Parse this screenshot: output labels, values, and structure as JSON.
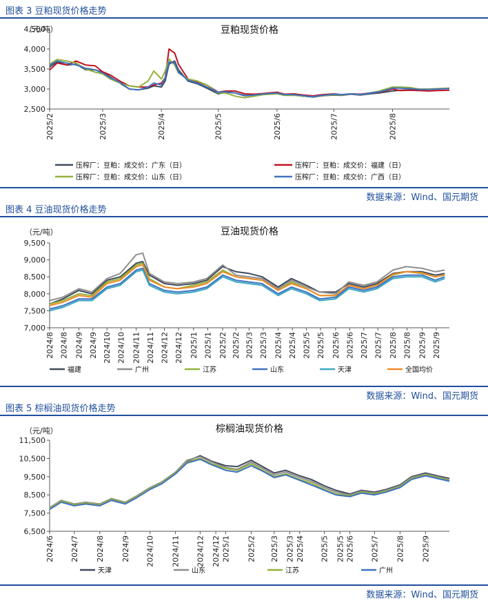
{
  "sections": [
    {
      "heading": "图表 3 豆粕现货价格走势",
      "source": "数据来源：Wind、国元期货",
      "chart_data": {
        "type": "line",
        "title": "豆粕现货价格",
        "unit": "（元/吨）",
        "ylim": [
          2500,
          4500
        ],
        "yticks": [
          2500,
          3000,
          3500,
          4000,
          4500
        ],
        "ytick_labels": [
          "2,500",
          "3,000",
          "3,500",
          "4,000",
          "4,500"
        ],
        "x_dates": [
          "2025-02-01",
          "2025-02-05",
          "2025-02-10",
          "2025-02-15",
          "2025-02-20",
          "2025-02-25",
          "2025-03-01",
          "2025-03-05",
          "2025-03-10",
          "2025-03-15",
          "2025-03-20",
          "2025-03-25",
          "2025-03-28",
          "2025-04-01",
          "2025-04-03",
          "2025-04-05",
          "2025-04-08",
          "2025-04-10",
          "2025-04-15",
          "2025-04-20",
          "2025-04-25",
          "2025-05-01",
          "2025-05-05",
          "2025-05-10",
          "2025-05-15",
          "2025-05-20",
          "2025-05-25",
          "2025-06-01",
          "2025-06-05",
          "2025-06-10",
          "2025-06-15",
          "2025-06-20",
          "2025-06-25",
          "2025-07-01",
          "2025-07-05",
          "2025-07-10",
          "2025-07-15",
          "2025-07-20",
          "2025-07-25",
          "2025-08-01",
          "2025-08-05",
          "2025-08-10",
          "2025-08-15",
          "2025-08-20",
          "2025-08-25",
          "2025-08-31"
        ],
        "xtick_labels": [
          "2025/2",
          "2025/3",
          "2025/4",
          "2025/5",
          "2025/6",
          "2025/7",
          "2025/8"
        ],
        "xtick_dates": [
          "2025-02-01",
          "2025-03-01",
          "2025-04-01",
          "2025-05-01",
          "2025-06-01",
          "2025-07-01",
          "2025-08-01"
        ],
        "x_start": "2025-02-01",
        "x_end": "2025-08-31",
        "legend_columns": 2,
        "series": [
          {
            "name": "压榨厂：豆粕：成交价：广东（日）",
            "color": "#404a5c",
            "values": [
              3550,
              3680,
              3600,
              3620,
              3480,
              3480,
              3420,
              3300,
              3150,
              3000,
              2980,
              3020,
              3080,
              3050,
              3200,
              3620,
              3700,
              3480,
              3200,
              3130,
              3020,
              2880,
              2920,
              2900,
              2830,
              2850,
              2870,
              2900,
              2850,
              2860,
              2820,
              2800,
              2830,
              2850,
              2840,
              2870,
              2850,
              2880,
              2900,
              2950,
              2970,
              2980,
              2980,
              2990,
              3000,
              3020
            ]
          },
          {
            "name": "压榨厂：豆粕：成交价：福建（日）",
            "color": "#c0121e",
            "values": [
              3480,
              3650,
              3600,
              3700,
              3600,
              3580,
              3430,
              3350,
              3200,
              3080,
              3050,
              3050,
              3100,
              3150,
              3280,
              4000,
              3900,
              3620,
              3250,
              3180,
              3100,
              2920,
              2950,
              2950,
              2880,
              2870,
              2890,
              2920,
              2870,
              2880,
              2850,
              2830,
              2860,
              2880,
              2860,
              2880,
              2870,
              2900,
              2920,
              3000,
              2960,
              2970,
              2960,
              2950,
              2960,
              2970
            ]
          },
          {
            "name": "压榨厂：豆粕：成交价：山东（日）",
            "color": "#93b23b",
            "values": [
              3620,
              3740,
              3700,
              3650,
              3500,
              3420,
              3380,
              3250,
              3150,
              3080,
              3050,
              3200,
              3450,
              3250,
              3450,
              3750,
              3600,
              3400,
              3250,
              3200,
              3100,
              2900,
              2900,
              2820,
              2780,
              2820,
              2860,
              2880,
              2840,
              2840,
              2820,
              2810,
              2830,
              2860,
              2850,
              2880,
              2860,
              2900,
              2950,
              3050,
              3050,
              3040,
              3000,
              3000,
              3010,
              3020
            ]
          },
          {
            "name": "压榨厂：豆粕：成交价：广西（日）",
            "color": "#3f72c0",
            "values": [
              3600,
              3700,
              3650,
              3600,
              3520,
              3480,
              3400,
              3280,
              3170,
              3000,
              2980,
              3050,
              3150,
              3100,
              3280,
              3680,
              3650,
              3420,
              3220,
              3150,
              3050,
              2920,
              2930,
              2900,
              2840,
              2850,
              2880,
              2900,
              2860,
              2860,
              2830,
              2810,
              2840,
              2870,
              2860,
              2880,
              2860,
              2900,
              2930,
              3020,
              3020,
              3010,
              2990,
              2990,
              3000,
              3010
            ]
          }
        ]
      }
    },
    {
      "heading": "图表 4 豆油现货价格走势",
      "source": "数据来源：Wind、国元期货",
      "chart_data": {
        "type": "line",
        "title": "豆油现货价格",
        "unit": "（元/吨）",
        "ylim": [
          7000,
          9500
        ],
        "yticks": [
          7000,
          7500,
          8000,
          8500,
          9000,
          9500
        ],
        "ytick_labels": [
          "7,000",
          "7,500",
          "8,000",
          "8,500",
          "9,000",
          "9,500"
        ],
        "x_dates": [
          "2024-08-01",
          "2024-08-15",
          "2024-09-01",
          "2024-09-15",
          "2024-10-01",
          "2024-10-15",
          "2024-11-01",
          "2024-11-08",
          "2024-11-15",
          "2024-12-01",
          "2024-12-15",
          "2025-01-01",
          "2025-01-15",
          "2025-02-01",
          "2025-02-15",
          "2025-03-01",
          "2025-03-15",
          "2025-04-01",
          "2025-04-15",
          "2025-05-01",
          "2025-05-15",
          "2025-06-01",
          "2025-06-15",
          "2025-07-01",
          "2025-07-15",
          "2025-08-01",
          "2025-08-15",
          "2025-09-01",
          "2025-09-15",
          "2025-09-25"
        ],
        "xtick_labels": [
          "2024/8",
          "2024/8",
          "2024/9",
          "2024/9",
          "2024/10",
          "2024/10",
          "2024/11",
          "2024/11",
          "2024/12",
          "2024/12",
          "2025/1",
          "2025/1",
          "2025/2",
          "2025/2",
          "2025/3",
          "2025/3",
          "2025/4",
          "2025/4",
          "2025/5",
          "2025/5",
          "2025/6",
          "2025/6",
          "2025/7",
          "2025/7",
          "2025/8",
          "2025/8",
          "2025/9",
          "2025/9"
        ],
        "xtick_dates": [
          "2024-08-01",
          "2024-08-16",
          "2024-09-01",
          "2024-09-16",
          "2024-10-01",
          "2024-10-16",
          "2024-11-01",
          "2024-11-16",
          "2024-12-01",
          "2024-12-16",
          "2025-01-01",
          "2025-01-16",
          "2025-02-01",
          "2025-02-15",
          "2025-03-01",
          "2025-03-16",
          "2025-04-01",
          "2025-04-16",
          "2025-05-01",
          "2025-05-16",
          "2025-06-01",
          "2025-06-16",
          "2025-07-01",
          "2025-07-16",
          "2025-08-01",
          "2025-08-16",
          "2025-09-01",
          "2025-09-16"
        ],
        "x_start": "2024-08-01",
        "x_end": "2025-09-30",
        "legend_columns": 6,
        "series": [
          {
            "name": "福建",
            "color": "#404a5c",
            "values": [
              7700,
              7850,
              8100,
              8000,
              8400,
              8500,
              8900,
              8950,
              8550,
              8300,
              8250,
              8300,
              8400,
              8800,
              8650,
              8600,
              8500,
              8200,
              8450,
              8250,
              8050,
              8050,
              8300,
              8200,
              8300,
              8600,
              8650,
              8650,
              8550,
              8600
            ]
          },
          {
            "name": "广州",
            "color": "#8e8e8e",
            "values": [
              7800,
              7900,
              8150,
              8050,
              8450,
              8600,
              9150,
              9200,
              8600,
              8350,
              8300,
              8350,
              8450,
              8850,
              8550,
              8500,
              8450,
              8150,
              8400,
              8200,
              8050,
              8000,
              8350,
              8250,
              8350,
              8700,
              8800,
              8750,
              8650,
              8700
            ]
          },
          {
            "name": "江苏",
            "color": "#93b23b",
            "values": [
              7700,
              7800,
              8000,
              7950,
              8350,
              8450,
              8850,
              8900,
              8450,
              8200,
              8150,
              8250,
              8350,
              8700,
              8500,
              8450,
              8400,
              8100,
              8350,
              8150,
              7950,
              7950,
              8250,
              8150,
              8250,
              8550,
              8650,
              8600,
              8500,
              8550
            ]
          },
          {
            "name": "山东",
            "color": "#3f72c0",
            "values": [
              7550,
              7650,
              7850,
              7850,
              8200,
              8300,
              8700,
              8750,
              8300,
              8100,
              8050,
              8100,
              8200,
              8550,
              8400,
              8350,
              8300,
              8000,
              8200,
              8050,
              7850,
              7900,
              8200,
              8100,
              8200,
              8500,
              8550,
              8550,
              8400,
              8500
            ]
          },
          {
            "name": "天津",
            "color": "#3aa8c1",
            "values": [
              7500,
              7600,
              7800,
              7800,
              8150,
              8250,
              8650,
              8700,
              8250,
              8050,
              8000,
              8050,
              8150,
              8500,
              8350,
              8300,
              8250,
              7950,
              8150,
              8000,
              7800,
              7850,
              8150,
              8050,
              8150,
              8450,
              8500,
              8500,
              8350,
              8450
            ]
          },
          {
            "name": "全国均价",
            "color": "#f08a2a",
            "values": [
              7650,
              7750,
              7950,
              7900,
              8300,
              8400,
              8800,
              8850,
              8400,
              8200,
              8150,
              8200,
              8300,
              8650,
              8500,
              8450,
              8400,
              8100,
              8300,
              8150,
              7950,
              7950,
              8250,
              8150,
              8250,
              8580,
              8650,
              8620,
              8500,
              8560
            ]
          }
        ]
      }
    },
    {
      "heading": "图表 5 棕榈油现货价格走势",
      "source": "数据来源：Wind、国元期货",
      "chart_data": {
        "type": "line",
        "title": "棕榈油现货价格",
        "unit": "（元/吨）",
        "ylim": [
          6500,
          11500
        ],
        "yticks": [
          6500,
          7500,
          8500,
          9500,
          10500,
          11500
        ],
        "ytick_labels": [
          "6,500",
          "7,500",
          "8,500",
          "9,500",
          "10,500",
          "11,500"
        ],
        "x_dates": [
          "2024-06-01",
          "2024-06-15",
          "2024-07-01",
          "2024-07-15",
          "2024-08-01",
          "2024-08-15",
          "2024-09-01",
          "2024-09-15",
          "2024-10-01",
          "2024-10-15",
          "2024-11-01",
          "2024-11-15",
          "2024-12-01",
          "2024-12-15",
          "2025-01-01",
          "2025-01-15",
          "2025-02-01",
          "2025-02-15",
          "2025-03-01",
          "2025-03-15",
          "2025-04-01",
          "2025-04-15",
          "2025-05-01",
          "2025-05-15",
          "2025-06-01",
          "2025-06-15",
          "2025-07-01",
          "2025-07-15",
          "2025-08-01",
          "2025-08-15",
          "2025-09-01",
          "2025-09-15",
          "2025-09-30"
        ],
        "xtick_labels": [
          "2024/6",
          "2024/7",
          "2024/8",
          "2024/9",
          "2024/10",
          "2024/11",
          "2024/12",
          "2024/12",
          "2025/1",
          "2025/2",
          "2025/3",
          "2025/3",
          "2025/4",
          "2025/5",
          "2025/5",
          "2025/6",
          "2025/7",
          "2025/8",
          "2025/9"
        ],
        "xtick_dates": [
          "2024-06-01",
          "2024-07-01",
          "2024-08-01",
          "2024-09-01",
          "2024-10-01",
          "2024-11-01",
          "2024-12-01",
          "2024-12-20",
          "2025-01-01",
          "2025-02-01",
          "2025-03-01",
          "2025-03-20",
          "2025-04-01",
          "2025-05-01",
          "2025-05-20",
          "2025-06-01",
          "2025-07-01",
          "2025-08-01",
          "2025-09-01"
        ],
        "x_start": "2024-06-01",
        "x_end": "2025-09-30",
        "legend_columns": 4,
        "series": [
          {
            "name": "天津",
            "color": "#404a5c",
            "values": [
              7750,
              8150,
              7950,
              8050,
              7950,
              8250,
              8050,
              8400,
              8850,
              9150,
              9700,
              10350,
              10650,
              10350,
              10100,
              10050,
              10400,
              10050,
              9700,
              9850,
              9550,
              9350,
              9000,
              8750,
              8550,
              8750,
              8650,
              8800,
              9050,
              9500,
              9700,
              9550,
              9400
            ]
          },
          {
            "name": "山东",
            "color": "#8e8e8e",
            "values": [
              7800,
              8200,
              8000,
              8100,
              8000,
              8300,
              8100,
              8450,
              8900,
              9200,
              9750,
              10400,
              10600,
              10300,
              10000,
              9900,
              10300,
              9950,
              9600,
              9750,
              9450,
              9250,
              8900,
              8650,
              8500,
              8700,
              8600,
              8750,
              9000,
              9450,
              9650,
              9500,
              9350
            ]
          },
          {
            "name": "江苏",
            "color": "#93b23b",
            "values": [
              7750,
              8150,
              7950,
              8050,
              7950,
              8250,
              8050,
              8400,
              8850,
              9150,
              9700,
              10300,
              10500,
              10200,
              9950,
              9850,
              10200,
              9850,
              9500,
              9650,
              9350,
              9150,
              8800,
              8550,
              8450,
              8650,
              8550,
              8700,
              8950,
              9400,
              9600,
              9450,
              9300
            ]
          },
          {
            "name": "广州",
            "color": "#3f72c0",
            "values": [
              7700,
              8100,
              7900,
              8000,
              7900,
              8200,
              8000,
              8350,
              8800,
              9100,
              9650,
              10250,
              10450,
              10150,
              9850,
              9750,
              10100,
              9800,
              9450,
              9600,
              9300,
              9050,
              8750,
              8500,
              8400,
              8600,
              8500,
              8650,
              8900,
              9350,
              9550,
              9400,
              9250
            ]
          }
        ]
      }
    }
  ]
}
